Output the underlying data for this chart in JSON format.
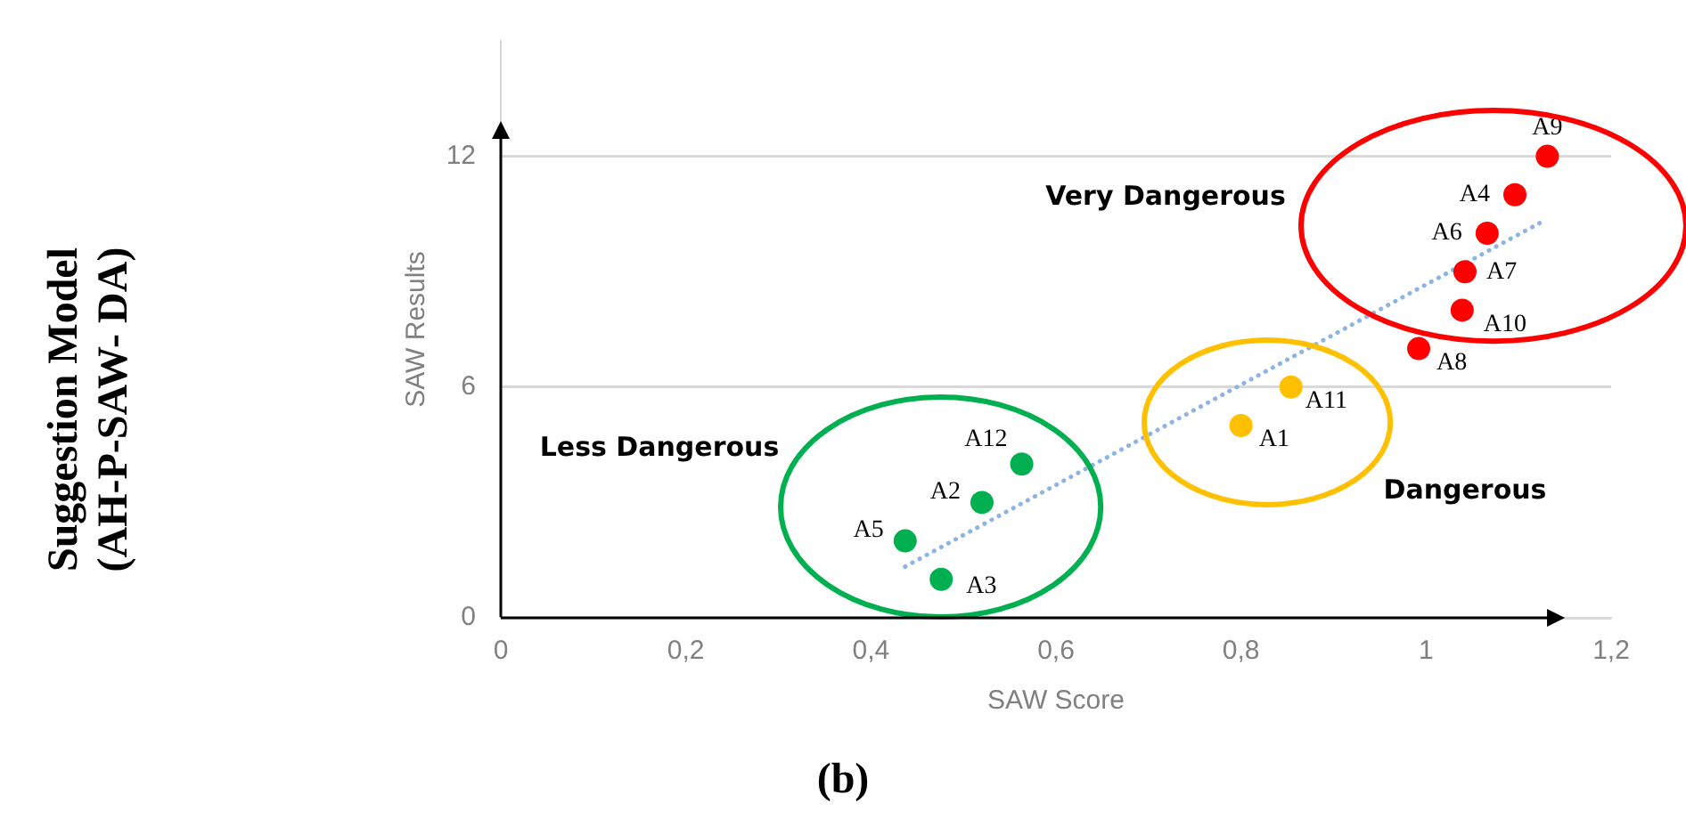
{
  "chart_data": {
    "type": "scatter",
    "xlabel": "SAW Score",
    "ylabel": "SAW Results",
    "xlim": [
      0,
      1.2
    ],
    "xticks": [
      0,
      {
        "value": 0.2,
        "label": "0,2"
      },
      {
        "value": 0.4,
        "label": "0,4"
      },
      {
        "value": 0.6,
        "label": "0,6"
      },
      {
        "value": 0.8,
        "label": "0,8"
      },
      1,
      {
        "value": 1.2,
        "label": "1,2"
      }
    ],
    "ylim": [
      0,
      15
    ],
    "yticks": [
      0,
      6,
      12
    ],
    "grid": "y",
    "legend": false,
    "marker": "circle",
    "series": [
      {
        "color": "#ff0000",
        "x": [
          1.131,
          1.096,
          1.066,
          1.042,
          1.039,
          0.992
        ],
        "values": [
          12,
          11,
          10,
          9,
          8,
          7
        ],
        "value_labels": [
          "A9",
          "A4",
          "A6",
          "A7",
          "A10",
          "A8"
        ]
      },
      {
        "color": "#ffc000",
        "x": [
          0.854,
          0.8
        ],
        "values": [
          6,
          5
        ],
        "value_labels": [
          "A11",
          "A1"
        ]
      },
      {
        "color": "#00b050",
        "x": [
          0.563,
          0.52,
          0.437,
          0.476
        ],
        "values": [
          4,
          3,
          2,
          1
        ],
        "value_labels": [
          "A12",
          "A2",
          "A5",
          "A3"
        ]
      },
      {
        "type": "line",
        "color": "#8db4e2",
        "line_style": "dotted",
        "marker": "none",
        "x": [
          0.437,
          1.13
        ],
        "values": [
          1.33,
          10.36
        ]
      }
    ],
    "annotations": [
      "Very Dangerous",
      "Dangerous",
      "Less Dangerous",
      "Suggestion Model\n(AH-P-SAW- DA)",
      "(b)"
    ]
  }
}
